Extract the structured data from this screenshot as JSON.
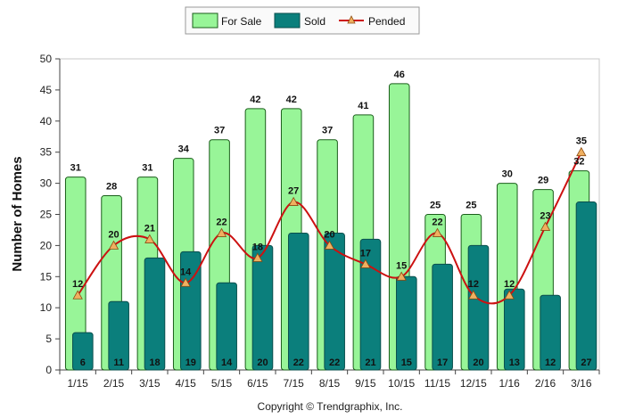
{
  "chart_data": {
    "type": "bar",
    "categories": [
      "1/15",
      "2/15",
      "3/15",
      "4/15",
      "5/15",
      "6/15",
      "7/15",
      "8/15",
      "9/15",
      "10/15",
      "11/15",
      "12/15",
      "1/16",
      "2/16",
      "3/16"
    ],
    "series": [
      {
        "name": "For Sale",
        "kind": "bar",
        "color": "#98f598",
        "values": [
          31,
          28,
          31,
          34,
          37,
          42,
          42,
          37,
          41,
          46,
          25,
          25,
          30,
          29,
          32
        ]
      },
      {
        "name": "Sold",
        "kind": "bar",
        "color": "#0b7f7c",
        "values": [
          6,
          11,
          18,
          19,
          14,
          20,
          22,
          22,
          21,
          15,
          17,
          20,
          13,
          12,
          27
        ]
      },
      {
        "name": "Pended",
        "kind": "line",
        "color": "#cc1111",
        "marker_color": "#f0b060",
        "values": [
          12,
          20,
          21,
          14,
          22,
          18,
          27,
          20,
          17,
          15,
          22,
          12,
          12,
          23,
          35
        ]
      }
    ],
    "ylabel": "Number of Homes",
    "xlabel": "",
    "ylim": [
      0,
      50
    ],
    "yticks": [
      0,
      5,
      10,
      15,
      20,
      25,
      30,
      35,
      40,
      45,
      50
    ],
    "legend_position": "top-center",
    "grid": false
  },
  "footer": {
    "copyright": "Copyright © Trendgraphix, Inc."
  }
}
